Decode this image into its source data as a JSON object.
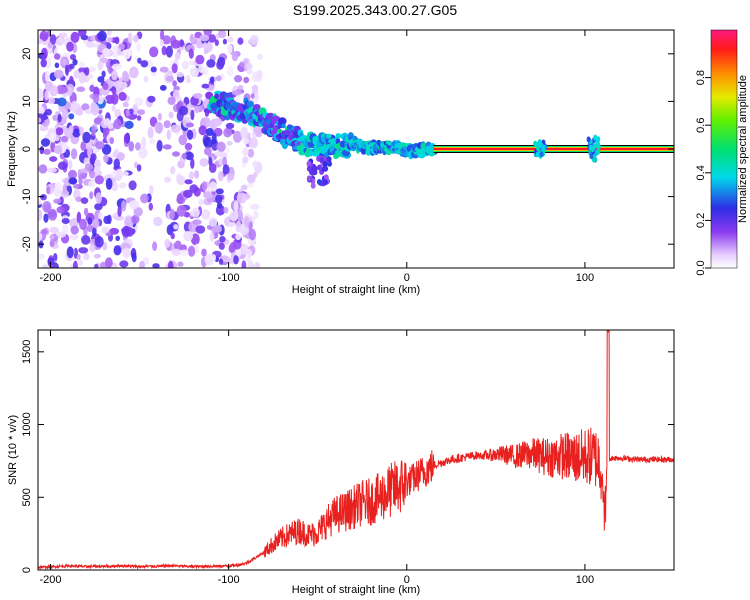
{
  "title": "S199.2025.343.00.27.G05",
  "colors": {
    "snr_line": "#e8201e",
    "frame": "#000000"
  },
  "chart_data": [
    {
      "type": "heatmap",
      "title": "S199.2025.343.00.27.G05",
      "xlabel": "Height of straight line (km)",
      "ylabel": "Frequency (Hz)",
      "xlim": [
        -207,
        150
      ],
      "ylim": [
        -25,
        25
      ],
      "xticks": [
        -200,
        -100,
        0,
        100
      ],
      "yticks": [
        -20,
        -10,
        0,
        10,
        20
      ],
      "xtick_labels": [
        "-200",
        "-100",
        "0",
        "100"
      ],
      "ytick_labels": [
        "-20",
        "-10",
        "0",
        "10",
        "20"
      ],
      "colorbar": {
        "label": "Normalized spectral amplitude",
        "range": [
          0,
          1
        ],
        "ticks": [
          0.0,
          0.2,
          0.4,
          0.6,
          0.8
        ],
        "tick_labels": [
          "0.0",
          "0.2",
          "0.4",
          "0.6",
          "0.8"
        ]
      },
      "signal_track": [
        {
          "x": -100,
          "freq": 9.0
        },
        {
          "x": -90,
          "freq": 8.0
        },
        {
          "x": -80,
          "freq": 6.0
        },
        {
          "x": -70,
          "freq": 3.5
        },
        {
          "x": -60,
          "freq": 1.5
        },
        {
          "x": -50,
          "freq": 0.5
        },
        {
          "x": -40,
          "freq": 0.5
        },
        {
          "x": -30,
          "freq": 0.8
        },
        {
          "x": -20,
          "freq": 0.3
        },
        {
          "x": -10,
          "freq": 0.5
        },
        {
          "x": 0,
          "freq": -0.3
        },
        {
          "x": 10,
          "freq": -0.2
        },
        {
          "x": 20,
          "freq": 0.0
        },
        {
          "x": 110,
          "freq": 0.0
        },
        {
          "x": 150,
          "freq": 0.0
        }
      ]
    },
    {
      "type": "line",
      "xlabel": "Height of straight line (km)",
      "ylabel": "SNR (10 * v/v)",
      "xlim": [
        -207,
        150
      ],
      "ylim": [
        0,
        1650
      ],
      "xticks": [
        -200,
        -100,
        0,
        100
      ],
      "yticks": [
        0,
        500,
        1000,
        1500
      ],
      "xtick_labels": [
        "-200",
        "-100",
        "0",
        "100"
      ],
      "ytick_labels": [
        "0",
        "500",
        "1000",
        "1500"
      ],
      "series": [
        {
          "name": "SNR",
          "x": [
            -207,
            -200,
            -190,
            -180,
            -170,
            -160,
            -150,
            -140,
            -130,
            -120,
            -110,
            -100,
            -95,
            -90,
            -85,
            -80,
            -75,
            -70,
            -65,
            -60,
            -55,
            -50,
            -45,
            -40,
            -35,
            -30,
            -25,
            -20,
            -15,
            -10,
            -5,
            0,
            5,
            10,
            15,
            20,
            25,
            30,
            35,
            40,
            45,
            50,
            55,
            60,
            65,
            70,
            75,
            80,
            85,
            90,
            95,
            100,
            105,
            108,
            111,
            113,
            115,
            120,
            130,
            140,
            150
          ],
          "values": [
            15,
            18,
            25,
            20,
            22,
            25,
            20,
            22,
            25,
            20,
            22,
            25,
            30,
            45,
            80,
            120,
            180,
            220,
            250,
            270,
            240,
            260,
            330,
            380,
            400,
            430,
            460,
            470,
            500,
            540,
            570,
            600,
            640,
            680,
            720,
            740,
            760,
            770,
            780,
            790,
            790,
            800,
            800,
            790,
            800,
            810,
            800,
            790,
            800,
            800,
            790,
            800,
            800,
            780,
            600,
            760,
            770,
            770,
            760,
            760,
            760
          ]
        }
      ],
      "spike": {
        "x": 113,
        "value": 1650
      }
    }
  ]
}
